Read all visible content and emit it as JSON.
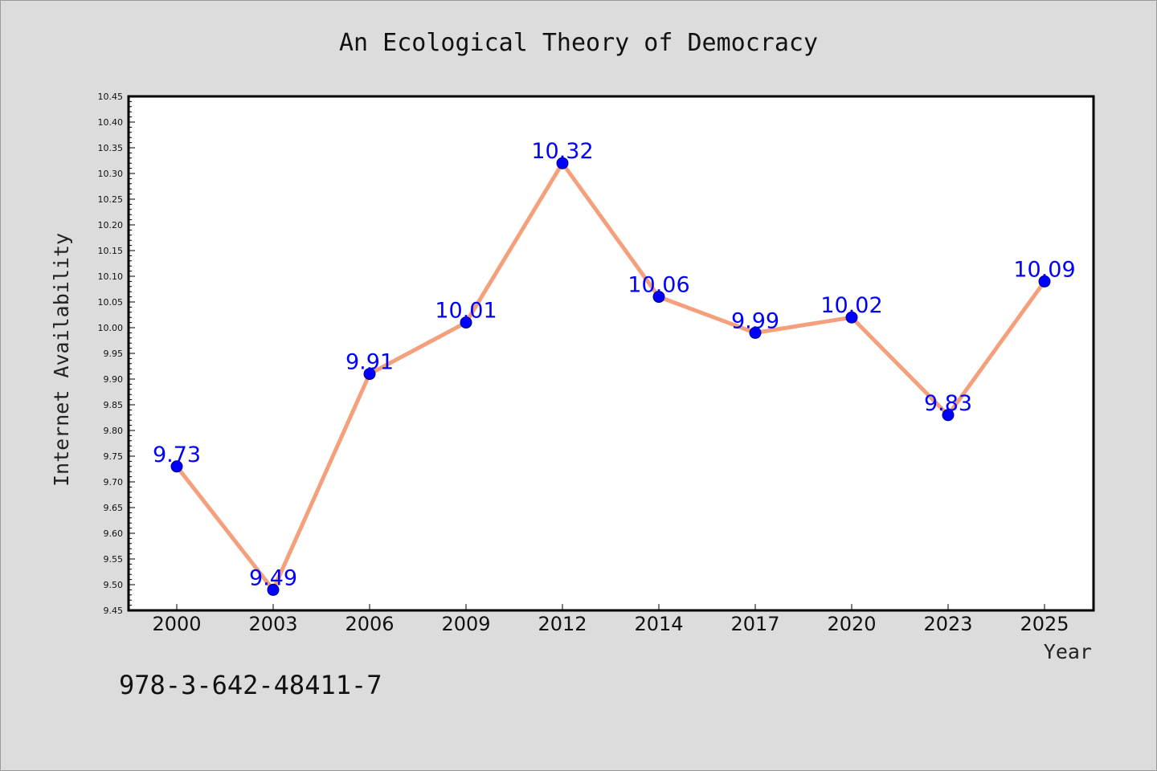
{
  "chart_data": {
    "type": "line",
    "title": "An Ecological Theory of Democracy",
    "xlabel": "Year",
    "ylabel": "Internet Availability",
    "categories": [
      "2000",
      "2003",
      "2006",
      "2009",
      "2012",
      "2014",
      "2017",
      "2020",
      "2023",
      "2025"
    ],
    "series": [
      {
        "values": [
          9.73,
          9.49,
          9.91,
          10.01,
          10.32,
          10.06,
          9.99,
          10.02,
          9.83,
          10.09
        ],
        "data_labels": [
          "9.73",
          "9.49",
          "9.91",
          "10.01",
          "10.32",
          "10.06",
          "9.99",
          "10.02",
          "9.83",
          "10.09"
        ],
        "line_color": "#f4a07c",
        "marker_color": "#0000ff"
      }
    ],
    "ylim": [
      9.45,
      10.45
    ],
    "ytick_step": 0.05,
    "ytick_labels": [
      "9.45",
      "9.50",
      "9.55",
      "9.60",
      "9.65",
      "9.70",
      "9.75",
      "9.80",
      "9.85",
      "9.90",
      "9.95",
      "10.00",
      "10.05",
      "10.10",
      "10.15",
      "10.20",
      "10.25",
      "10.30",
      "10.35",
      "10.40",
      "10.45"
    ],
    "grid": false,
    "legend": "none"
  },
  "footer": {
    "isbn": "978-3-642-48411-7"
  }
}
